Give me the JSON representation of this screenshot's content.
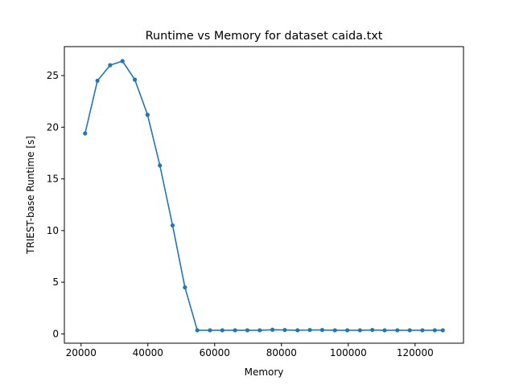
{
  "chart_data": {
    "type": "line",
    "title": "Runtime vs Memory for dataset caida.txt",
    "xlabel": "Memory",
    "ylabel": "TRIEST-base Runtime [s]",
    "xlim": [
      15000,
      134500
    ],
    "ylim": [
      -0.9,
      27.8
    ],
    "xticks": [
      20000,
      40000,
      60000,
      80000,
      100000,
      120000
    ],
    "yticks": [
      0,
      5,
      10,
      15,
      20,
      25
    ],
    "grid": false,
    "color": "#1f77b4",
    "marker": "circle",
    "series": [
      {
        "x": [
          21200,
          24900,
          28700,
          32400,
          36100,
          39900,
          43600,
          47400,
          51100,
          54800,
          58600,
          62300,
          66100,
          69800,
          73500,
          77300,
          81000,
          84800,
          88500,
          92200,
          96000,
          99700,
          103500,
          107200,
          110900,
          114700,
          118400,
          122200,
          125900,
          128300
        ],
        "y": [
          19.4,
          24.5,
          26.0,
          26.4,
          24.6,
          21.2,
          16.3,
          10.5,
          4.5,
          0.35,
          0.35,
          0.35,
          0.35,
          0.35,
          0.35,
          0.4,
          0.38,
          0.35,
          0.38,
          0.38,
          0.35,
          0.35,
          0.35,
          0.38,
          0.35,
          0.35,
          0.35,
          0.35,
          0.35,
          0.35
        ]
      }
    ]
  }
}
